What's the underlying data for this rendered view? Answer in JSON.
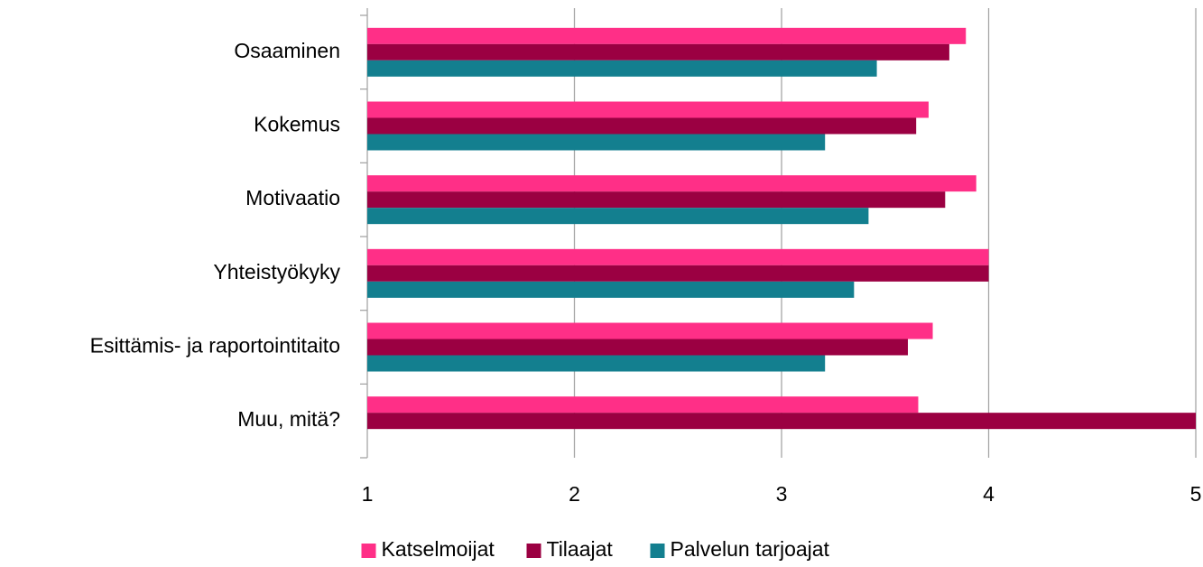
{
  "chart_data": {
    "type": "bar",
    "orientation": "horizontal",
    "categories": [
      "Osaaminen",
      "Kokemus",
      "Motivaatio",
      "Yhteistyökyky",
      "Esittämis- ja raportointitaito",
      "Muu, mitä?"
    ],
    "series": [
      {
        "name": "Katselmoijat",
        "color": "#ff2f87",
        "values": [
          3.89,
          3.71,
          3.94,
          4,
          3.73,
          3.66
        ]
      },
      {
        "name": "Tilaajat",
        "color": "#9b0042",
        "values": [
          3.81,
          3.65,
          3.79,
          4,
          3.61,
          5
        ]
      },
      {
        "name": "Palvelun tarjoajat",
        "color": "#137f8f",
        "values": [
          3.46,
          3.21,
          3.42,
          3.35,
          3.21,
          null
        ]
      }
    ],
    "xlim": [
      1,
      5
    ],
    "xticks": [
      1,
      2,
      3,
      4,
      5
    ],
    "grid": true,
    "legend": "bottom"
  }
}
